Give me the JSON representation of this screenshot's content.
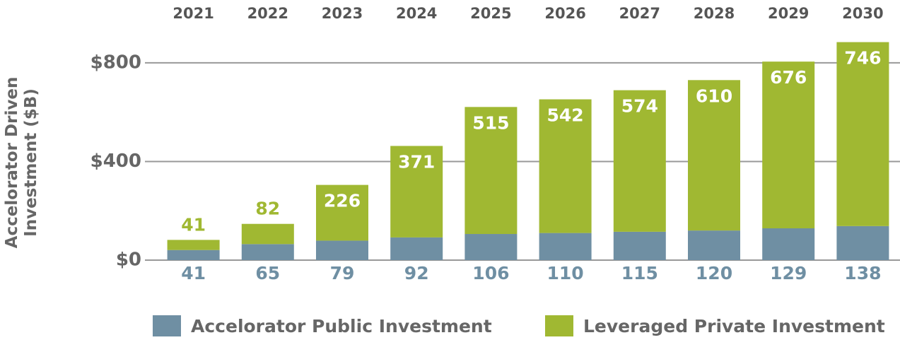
{
  "chart_data": {
    "type": "stacked_bar",
    "ylabel": [
      "Accelorator Driven",
      "Investment ($B)"
    ],
    "categories": [
      "2021",
      "2022",
      "2023",
      "2024",
      "2025",
      "2026",
      "2027",
      "2028",
      "2029",
      "2030"
    ],
    "series": [
      {
        "name": "Accelorator Public Investment",
        "color": "#6f8fa3",
        "values": [
          41,
          65,
          79,
          92,
          106,
          110,
          115,
          120,
          129,
          138
        ]
      },
      {
        "name": "Leveraged Private Investment",
        "color": "#a0b832",
        "values": [
          41,
          82,
          226,
          371,
          515,
          542,
          574,
          610,
          676,
          746
        ]
      }
    ],
    "ylim": [
      0,
      900
    ],
    "yticks": [
      {
        "value": 0,
        "label": "$0"
      },
      {
        "value": 400,
        "label": "$400"
      },
      {
        "value": 800,
        "label": "$800"
      }
    ],
    "grid": true,
    "legend": "bottom"
  }
}
